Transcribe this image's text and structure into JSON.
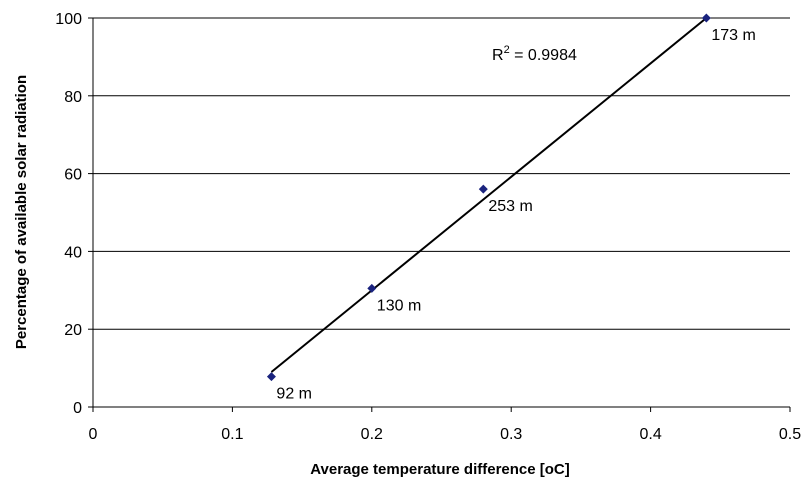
{
  "chart_data": {
    "type": "scatter",
    "title": "",
    "xlabel": "Average temperature difference [oC]",
    "ylabel": "Percentage of available solar radiation",
    "xlim": [
      0,
      0.5
    ],
    "ylim": [
      0,
      100
    ],
    "x_ticks": [
      "0",
      "0.1",
      "0.2",
      "0.3",
      "0.4",
      "0.5"
    ],
    "y_ticks": [
      "0",
      "20",
      "40",
      "60",
      "80",
      "100"
    ],
    "grid": "horizontal",
    "points": [
      {
        "x": 0.128,
        "y": 7.8,
        "label": "92 m"
      },
      {
        "x": 0.2,
        "y": 30.5,
        "label": "130 m"
      },
      {
        "x": 0.28,
        "y": 56,
        "label": "253 m"
      },
      {
        "x": 0.44,
        "y": 100,
        "label": "173 m"
      }
    ],
    "trendline": {
      "type": "linear",
      "from": {
        "x": 0.128,
        "y": 9
      },
      "to": {
        "x": 0.44,
        "y": 100
      },
      "r2_label": "R",
      "r2_exponent": "2",
      "r2_value": " = 0.9984"
    },
    "colors": {
      "marker": "#1a237e",
      "trendline": "#000000",
      "gridline": "#000000"
    }
  }
}
